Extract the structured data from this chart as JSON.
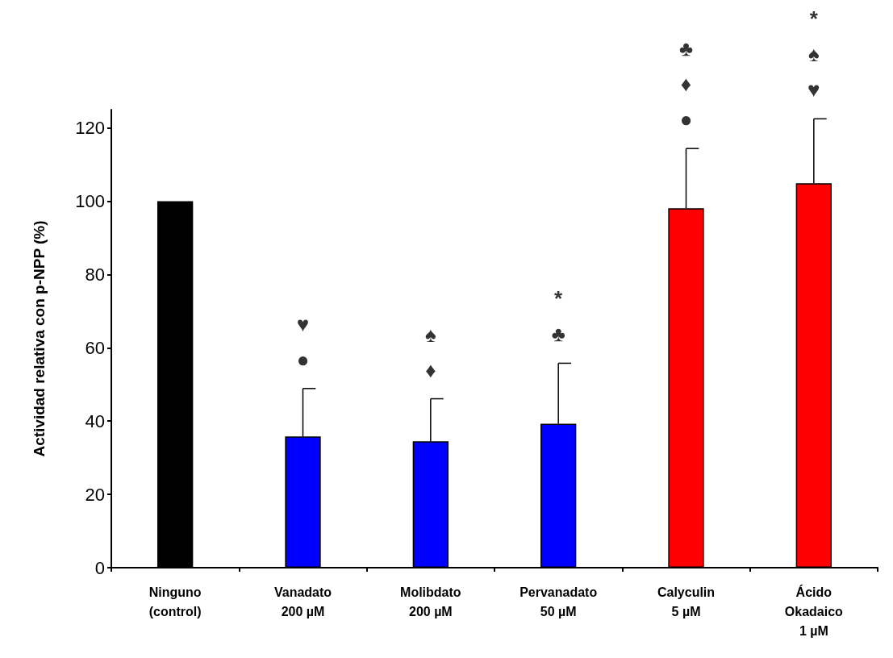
{
  "chart_data": {
    "type": "bar",
    "ylabel": "Actividad relativa con p-NPP (%)",
    "categories": [
      "Ninguno\n(control)",
      "Vanadato\n200 µM",
      "Molibdato\n200 µM",
      "Pervanadato\n50 µM",
      "Calyculin\n5 µM",
      "Ácido\nOkadaico\n1 µM"
    ],
    "values": [
      100,
      35.8,
      34.5,
      39.3,
      98.1,
      104.9
    ],
    "colors": [
      "#000000",
      "#0000ff",
      "#0000ff",
      "#0000ff",
      "#ff0000",
      "#ff0000"
    ],
    "errors": [
      null,
      [
        35.8,
        48.9
      ],
      [
        34.5,
        46.1
      ],
      [
        39.3,
        55.8
      ],
      [
        98.1,
        114.4
      ],
      [
        104.9,
        122.5
      ]
    ],
    "ylim": [
      0,
      125
    ],
    "yticks": [
      0,
      20,
      40,
      60,
      80,
      100,
      120
    ],
    "grid": false,
    "annotations": [
      {
        "text": "♥\n●",
        "x": "Vanadato\n200 µM"
      },
      {
        "text": "♠\n♦",
        "x": "Molibdato\n200 µM"
      },
      {
        "text": "*\n♣",
        "x": "Pervanadato\n50 µM"
      },
      {
        "text": "♣\n♦\n●",
        "x": "Calyculin\n5 µM"
      },
      {
        "text": "*\n♠\n♥",
        "x": "Ácido\nOkadaico\n1 µM"
      }
    ]
  }
}
